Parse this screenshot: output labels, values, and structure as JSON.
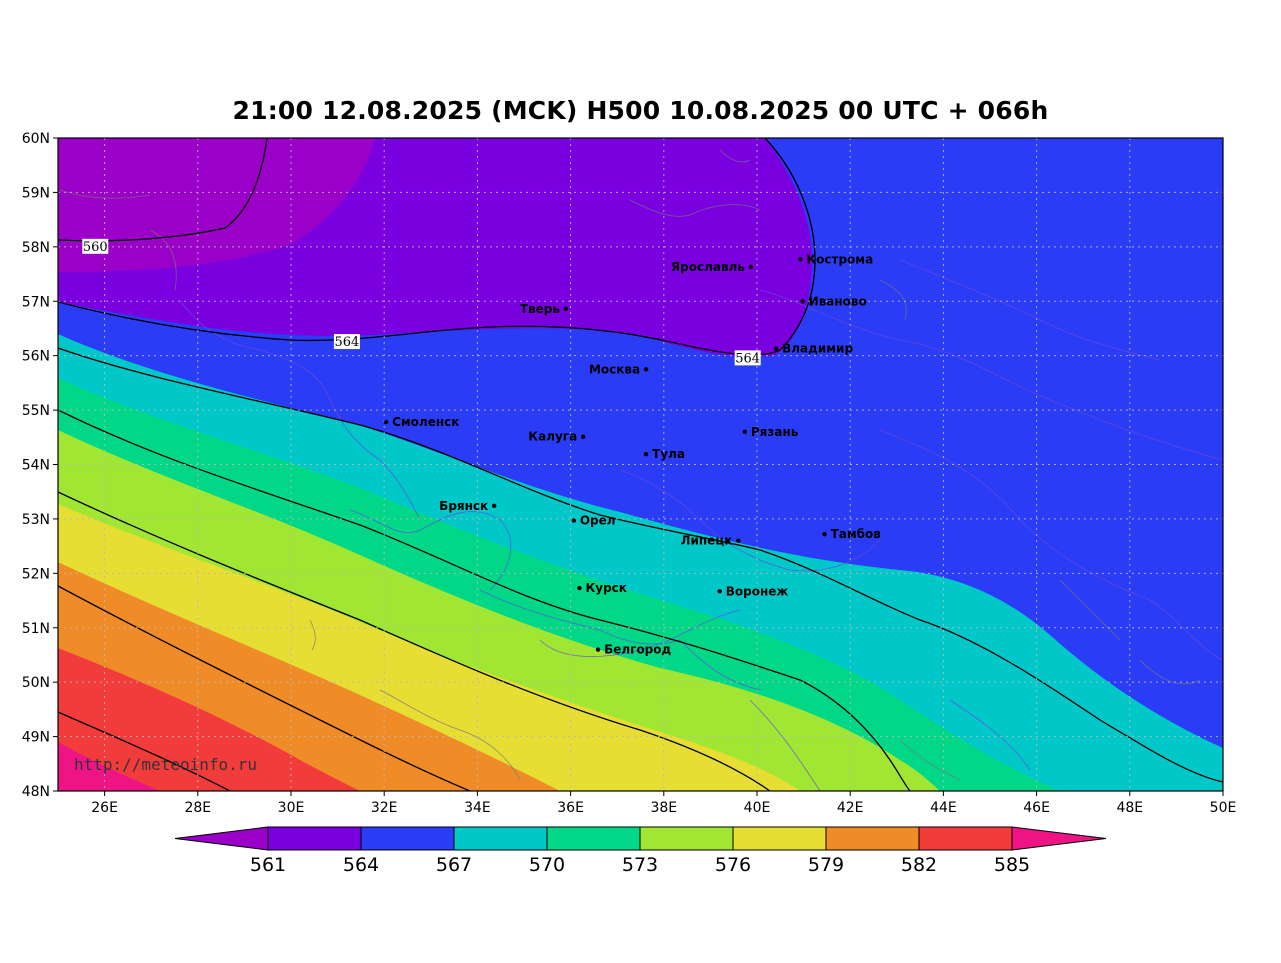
{
  "title": "21:00 12.08.2025 (MCK) H500  10.08.2025 00 UTC + 066h",
  "watermark": "http://meteoinfo.ru",
  "lat_labels": [
    "60N",
    "59N",
    "58N",
    "57N",
    "56N",
    "55N",
    "54N",
    "53N",
    "52N",
    "51N",
    "50N",
    "49N",
    "48N"
  ],
  "lon_labels": [
    "26E",
    "28E",
    "30E",
    "32E",
    "34E",
    "36E",
    "38E",
    "40E",
    "42E",
    "44E",
    "46E",
    "48E",
    "50E"
  ],
  "contour_labels": [
    {
      "value": "560",
      "lon": 25.8,
      "lat": 58.0
    },
    {
      "value": "564",
      "lon": 31.2,
      "lat": 56.25
    },
    {
      "value": "564",
      "lon": 39.8,
      "lat": 55.95
    }
  ],
  "cities": [
    {
      "name": "Кострома",
      "lon": 40.93,
      "lat": 57.77,
      "side": "right"
    },
    {
      "name": "Ярославль",
      "lon": 39.87,
      "lat": 57.63,
      "side": "left"
    },
    {
      "name": "Иваново",
      "lon": 40.98,
      "lat": 57.0,
      "side": "right"
    },
    {
      "name": "Тверь",
      "lon": 35.9,
      "lat": 56.86,
      "side": "left"
    },
    {
      "name": "Владимир",
      "lon": 40.41,
      "lat": 56.13,
      "side": "right"
    },
    {
      "name": "Москва",
      "lon": 37.62,
      "lat": 55.75,
      "side": "left"
    },
    {
      "name": "Смоленск",
      "lon": 32.04,
      "lat": 54.78,
      "side": "right"
    },
    {
      "name": "Калуга",
      "lon": 36.27,
      "lat": 54.51,
      "side": "left"
    },
    {
      "name": "Рязань",
      "lon": 39.74,
      "lat": 54.6,
      "side": "right"
    },
    {
      "name": "Тула",
      "lon": 37.62,
      "lat": 54.19,
      "side": "right"
    },
    {
      "name": "Брянск",
      "lon": 34.36,
      "lat": 53.24,
      "side": "left"
    },
    {
      "name": "Орел",
      "lon": 36.07,
      "lat": 52.97,
      "side": "right"
    },
    {
      "name": "Липецк",
      "lon": 39.6,
      "lat": 52.6,
      "side": "left"
    },
    {
      "name": "Тамбов",
      "lon": 41.45,
      "lat": 52.72,
      "side": "right"
    },
    {
      "name": "Курск",
      "lon": 36.19,
      "lat": 51.73,
      "side": "right"
    },
    {
      "name": "Воронеж",
      "lon": 39.2,
      "lat": 51.67,
      "side": "right"
    },
    {
      "name": "Белгород",
      "lon": 36.59,
      "lat": 50.6,
      "side": "right"
    }
  ],
  "colorbar": {
    "ticks": [
      "561",
      "564",
      "567",
      "570",
      "573",
      "576",
      "579",
      "582",
      "585"
    ],
    "colors": [
      "#9b00c8",
      "#7a00e0",
      "#2a3cf6",
      "#00c8c8",
      "#00d888",
      "#a0e632",
      "#e6de32",
      "#f08c28",
      "#f23c3c",
      "#ee1486"
    ]
  }
}
